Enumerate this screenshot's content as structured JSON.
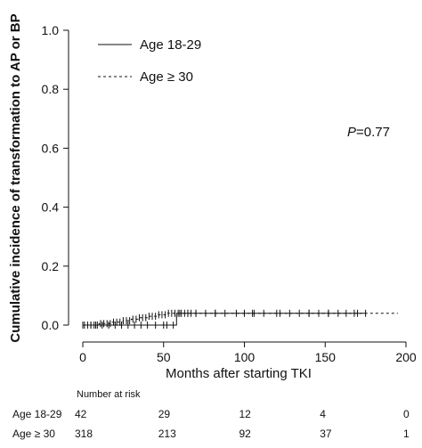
{
  "chart_data": {
    "type": "line",
    "title": "",
    "xlabel": "Months after starting TKI",
    "ylabel": "Cumulative incidence of transformation to AP or BP",
    "xlim": [
      0,
      200
    ],
    "ylim": [
      0,
      1.0
    ],
    "x_ticks": [
      "0",
      "50",
      "100",
      "150",
      "200"
    ],
    "y_ticks": [
      "0.0",
      "0.2",
      "0.4",
      "0.6",
      "0.8",
      "1.0"
    ],
    "grid": false,
    "legend_position": "top-left",
    "annotation": {
      "p_label": "P",
      "p_value": "=0.77"
    },
    "series": [
      {
        "name": "Age 18-29",
        "style": "solid",
        "steps": [
          [
            0,
            0.0
          ],
          [
            58,
            0.0
          ],
          [
            58,
            0.04
          ],
          [
            175,
            0.04
          ]
        ],
        "censor": [
          0,
          5,
          8,
          12,
          16,
          20,
          24,
          28,
          32,
          36,
          40,
          45,
          50,
          52,
          56,
          60,
          65,
          70,
          82,
          105,
          122,
          140,
          152,
          168,
          175
        ]
      },
      {
        "name": "Age ≥ 30",
        "style": "dashed",
        "steps": [
          [
            0,
            0.0
          ],
          [
            10,
            0.0
          ],
          [
            10,
            0.005
          ],
          [
            18,
            0.005
          ],
          [
            18,
            0.01
          ],
          [
            25,
            0.01
          ],
          [
            25,
            0.015
          ],
          [
            30,
            0.015
          ],
          [
            30,
            0.02
          ],
          [
            35,
            0.02
          ],
          [
            35,
            0.025
          ],
          [
            40,
            0.025
          ],
          [
            40,
            0.03
          ],
          [
            46,
            0.03
          ],
          [
            46,
            0.035
          ],
          [
            52,
            0.035
          ],
          [
            52,
            0.04
          ],
          [
            195,
            0.04
          ]
        ],
        "censor": [
          1,
          3,
          5,
          7,
          9,
          11,
          13,
          15,
          17,
          19,
          21,
          23,
          25,
          27,
          29,
          31,
          33,
          35,
          37,
          39,
          41,
          43,
          45,
          47,
          49,
          51,
          53,
          55,
          57,
          59,
          61,
          63,
          65,
          67,
          70,
          76,
          82,
          88,
          95,
          100,
          106,
          112,
          120,
          128,
          134,
          140,
          146,
          152,
          158,
          163,
          170
        ]
      }
    ],
    "number_at_risk": {
      "title": "Number at risk",
      "rows": [
        {
          "label": "Age 18-29",
          "values": [
            "42",
            "29",
            "12",
            "4",
            "0"
          ]
        },
        {
          "label": "Age ≥ 30",
          "values": [
            "318",
            "213",
            "92",
            "37",
            "1"
          ]
        }
      ]
    }
  }
}
